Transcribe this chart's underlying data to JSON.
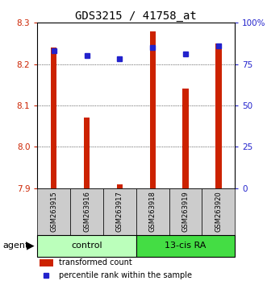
{
  "title": "GDS3215 / 41758_at",
  "samples": [
    "GSM263915",
    "GSM263916",
    "GSM263917",
    "GSM263918",
    "GSM263919",
    "GSM263920"
  ],
  "red_values": [
    8.24,
    8.07,
    7.91,
    8.28,
    8.14,
    8.25
  ],
  "blue_percentiles": [
    83,
    80,
    78,
    85,
    81,
    86
  ],
  "ylim_left": [
    7.9,
    8.3
  ],
  "ylim_right": [
    0,
    100
  ],
  "yticks_left": [
    7.9,
    8.0,
    8.1,
    8.2,
    8.3
  ],
  "yticks_right": [
    0,
    25,
    50,
    75,
    100
  ],
  "ytick_labels_right": [
    "0",
    "25",
    "50",
    "75",
    "100%"
  ],
  "left_color": "#cc2200",
  "right_color": "#2222cc",
  "bar_color": "#cc2200",
  "dot_color": "#2222cc",
  "control_color": "#bbffbb",
  "ra_color": "#44dd44",
  "label_area_bg": "#cccccc",
  "agent_label": "agent",
  "legend_red": "transformed count",
  "legend_blue": "percentile rank within the sample",
  "group_defs": [
    [
      "control",
      0,
      3
    ],
    [
      "13-cis RA",
      3,
      6
    ]
  ]
}
